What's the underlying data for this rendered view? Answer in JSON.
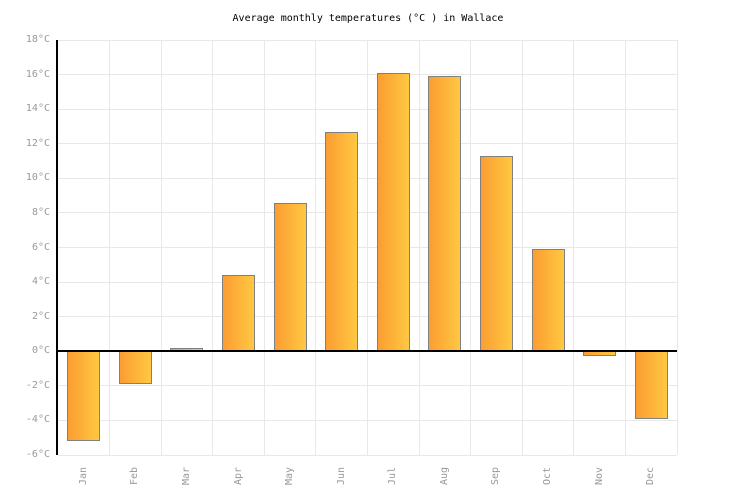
{
  "title": "Average monthly temperatures (°C ) in Wallace",
  "chart_data": {
    "type": "bar",
    "title": "Average monthly temperatures (°C ) in Wallace",
    "categories": [
      "Jan",
      "Feb",
      "Mar",
      "Apr",
      "May",
      "Jun",
      "Jul",
      "Aug",
      "Sep",
      "Oct",
      "Nov",
      "Dec"
    ],
    "values": [
      -5.2,
      -1.9,
      0.2,
      4.4,
      8.6,
      12.7,
      16.1,
      15.9,
      11.3,
      5.9,
      -0.3,
      -3.9
    ],
    "xlabel": "",
    "ylabel": "",
    "unit": "°C",
    "ylim": [
      -6,
      18
    ],
    "ytick_step": 2,
    "grid": true,
    "legend": "none"
  },
  "colors": {
    "background": "#ffffff",
    "title_text": "#000000",
    "tick_label": "#999999",
    "grid_line": "#e8e8e8",
    "axis_line": "#000000",
    "zero_line": "#000000",
    "bar_border": "#808080",
    "bar_gradient_start": "#FB9D32",
    "bar_gradient_end": "#FFC841"
  }
}
